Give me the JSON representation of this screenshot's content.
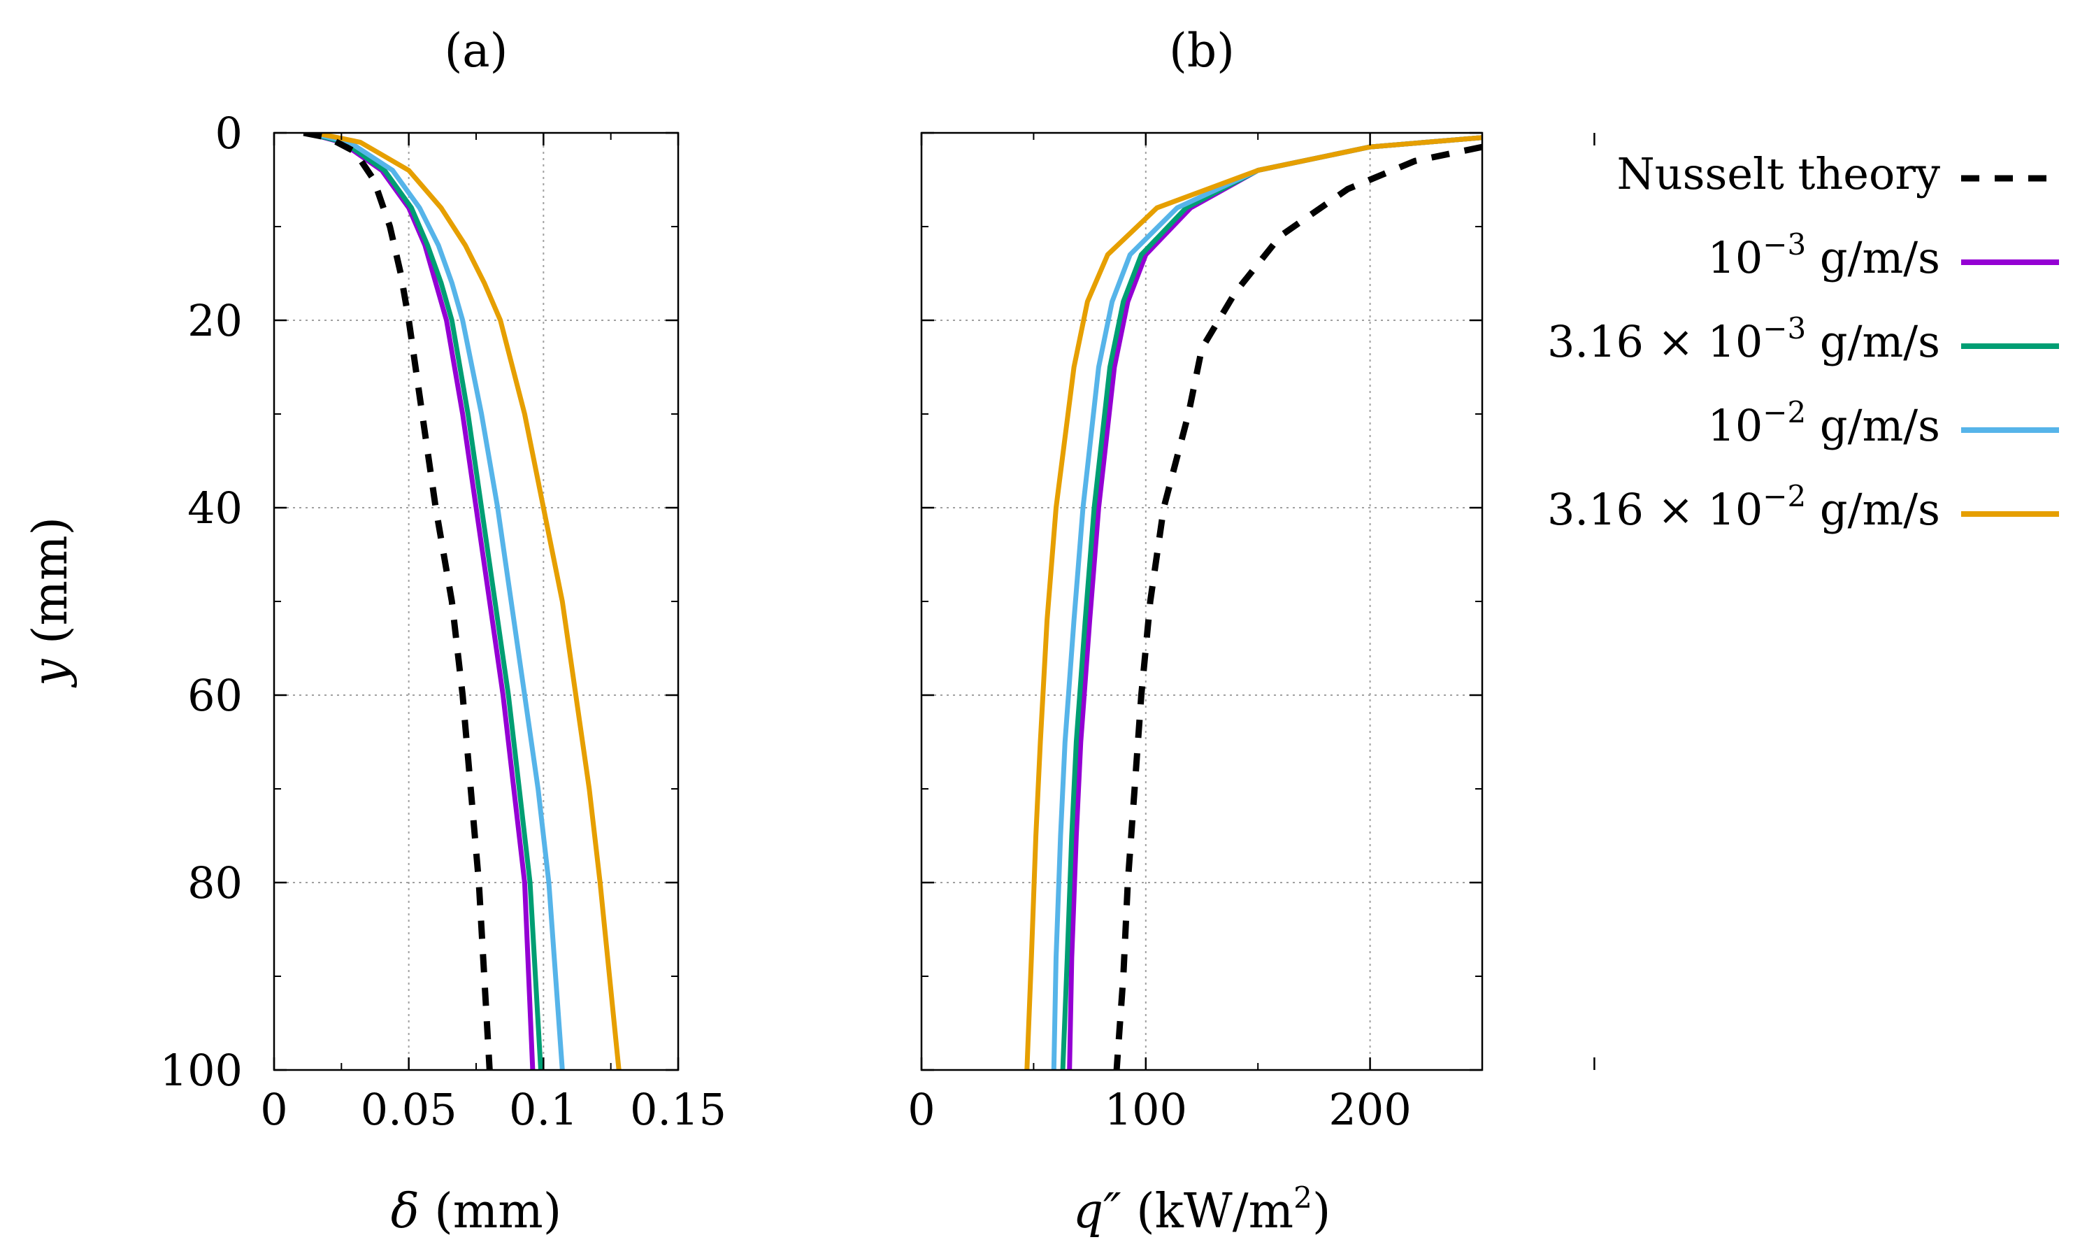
{
  "colors": {
    "nusselt": "#000000",
    "s1e-3": "#9400d3",
    "s316e-3": "#009e73",
    "s1e-2": "#56b4e9",
    "s316e-2": "#e69f00",
    "grid": "#a0a0a0"
  },
  "chart_data": [
    {
      "type": "line",
      "title": "(a)",
      "xlabel": "δ (mm)",
      "ylabel": "y (mm)",
      "xlim": [
        0,
        0.15
      ],
      "ylim": [
        100,
        0
      ],
      "xticks": [
        "0",
        "0.05",
        "0.1",
        "0.15"
      ],
      "yticks": [
        "0",
        "20",
        "40",
        "60",
        "80",
        "100"
      ],
      "grid": true,
      "series": [
        {
          "name": "Nusselt theory",
          "key": "nusselt",
          "style": "dashed",
          "x": [
            0.011,
            0.02,
            0.03,
            0.037,
            0.043,
            0.047,
            0.05,
            0.055,
            0.06,
            0.066,
            0.07,
            0.073,
            0.076,
            0.078,
            0.08
          ],
          "y": [
            0,
            0.5,
            2,
            5,
            10,
            15,
            20,
            30,
            40,
            50,
            60,
            70,
            80,
            90,
            100
          ]
        },
        {
          "name": "10^-3 g/m/s",
          "key": "s1e-3",
          "style": "solid",
          "x": [
            0.012,
            0.025,
            0.04,
            0.05,
            0.056,
            0.06,
            0.064,
            0.07,
            0.075,
            0.08,
            0.085,
            0.089,
            0.093,
            0.096
          ],
          "y": [
            0,
            1,
            4,
            8,
            12,
            16,
            20,
            30,
            40,
            50,
            60,
            70,
            80,
            100
          ]
        },
        {
          "name": "3.16 × 10^-3 g/m/s",
          "key": "s316e-3",
          "style": "solid",
          "x": [
            0.012,
            0.026,
            0.041,
            0.051,
            0.057,
            0.062,
            0.066,
            0.072,
            0.077,
            0.082,
            0.087,
            0.091,
            0.095,
            0.099
          ],
          "y": [
            0,
            1,
            4,
            8,
            12,
            16,
            20,
            30,
            40,
            50,
            60,
            70,
            80,
            100
          ]
        },
        {
          "name": "10^-2 g/m/s",
          "key": "s1e-2",
          "style": "solid",
          "x": [
            0.013,
            0.028,
            0.044,
            0.054,
            0.061,
            0.066,
            0.07,
            0.077,
            0.083,
            0.088,
            0.093,
            0.098,
            0.102,
            0.107
          ],
          "y": [
            0,
            1,
            4,
            8,
            12,
            16,
            20,
            30,
            40,
            50,
            60,
            70,
            80,
            100
          ]
        },
        {
          "name": "3.16 × 10^-2 g/m/s",
          "key": "s316e-2",
          "style": "solid",
          "x": [
            0.015,
            0.032,
            0.05,
            0.062,
            0.071,
            0.078,
            0.084,
            0.093,
            0.1,
            0.107,
            0.112,
            0.117,
            0.121,
            0.128
          ],
          "y": [
            0,
            1,
            4,
            8,
            12,
            16,
            20,
            30,
            40,
            50,
            60,
            70,
            80,
            100
          ]
        }
      ]
    },
    {
      "type": "line",
      "title": "(b)",
      "xlabel": "q″ (kW/m²)",
      "ylabel": "",
      "xlim": [
        0,
        250
      ],
      "ylim": [
        100,
        0
      ],
      "xticks": [
        "0",
        "100",
        "200"
      ],
      "yticks": [],
      "grid": true,
      "series": [
        {
          "name": "Nusselt theory",
          "key": "nusselt",
          "style": "dashed",
          "x": [
            250,
            220,
            190,
            160,
            140,
            125,
            119,
            108,
            102,
            98,
            95,
            92,
            90,
            87
          ],
          "y": [
            1.5,
            3,
            6,
            11,
            17,
            23,
            30,
            40,
            50,
            60,
            70,
            80,
            90,
            100
          ]
        },
        {
          "name": "10^-3 g/m/s",
          "key": "s1e-3",
          "style": "solid",
          "x": [
            250,
            200,
            150,
            120,
            100,
            92,
            86,
            79,
            75,
            71,
            69,
            67,
            66
          ],
          "y": [
            0.5,
            1.5,
            4,
            8,
            13,
            18,
            25,
            40,
            52,
            65,
            75,
            88,
            100
          ]
        },
        {
          "name": "3.16 × 10^-3 g/m/s",
          "key": "s316e-3",
          "style": "solid",
          "x": [
            250,
            200,
            150,
            118,
            98,
            90,
            84,
            77,
            73,
            69,
            67,
            65,
            63
          ],
          "y": [
            0.5,
            1.5,
            4,
            8,
            13,
            18,
            25,
            40,
            52,
            65,
            75,
            88,
            100
          ]
        },
        {
          "name": "10^-2 g/m/s",
          "key": "s1e-2",
          "style": "solid",
          "x": [
            250,
            200,
            150,
            114,
            93,
            85,
            79,
            72,
            68,
            64,
            62,
            60,
            59
          ],
          "y": [
            0.5,
            1.5,
            4,
            8,
            13,
            18,
            25,
            40,
            52,
            65,
            75,
            88,
            100
          ]
        },
        {
          "name": "3.16 × 10^-2 g/m/s",
          "key": "s316e-2",
          "style": "solid",
          "x": [
            250,
            200,
            150,
            105,
            83,
            74,
            68,
            60,
            56,
            53,
            51,
            49,
            47
          ],
          "y": [
            0.5,
            1.5,
            4,
            8,
            13,
            18,
            25,
            40,
            52,
            65,
            75,
            88,
            100
          ]
        }
      ]
    }
  ],
  "legend": {
    "placement": "right",
    "entries": [
      {
        "key": "nusselt",
        "label": "Nusselt theory",
        "style": "dashed"
      },
      {
        "key": "s1e-3",
        "base": "10",
        "exp": "−3",
        "unit": "g/m/s",
        "style": "solid"
      },
      {
        "key": "s316e-3",
        "prefix": "3.16 × ",
        "base": "10",
        "exp": "−3",
        "unit": "g/m/s",
        "style": "solid"
      },
      {
        "key": "s1e-2",
        "base": "10",
        "exp": "−2",
        "unit": "g/m/s",
        "style": "solid"
      },
      {
        "key": "s316e-2",
        "prefix": "3.16 × ",
        "base": "10",
        "exp": "−2",
        "unit": "g/m/s",
        "style": "solid"
      }
    ]
  },
  "axis_text": {
    "a_xlabel_sym": "δ",
    "a_xlabel_unit": " (mm)",
    "a_ylabel_sym": "y",
    "a_ylabel_unit": " (mm)",
    "b_xlabel_sym": "q″",
    "b_xlabel_unit": " (kW/m",
    "b_xlabel_sup": "2",
    "b_xlabel_close": ")"
  }
}
